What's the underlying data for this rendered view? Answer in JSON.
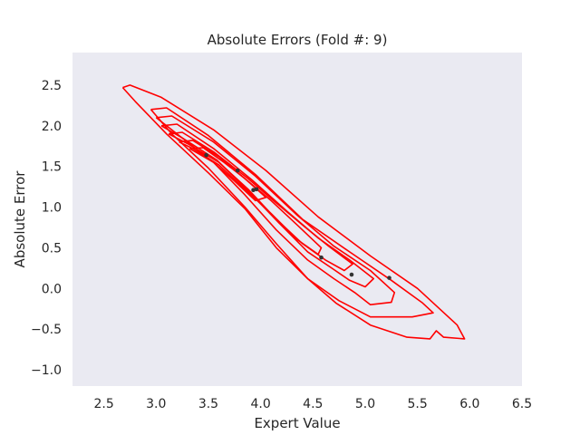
{
  "chart_data": {
    "type": "scatter",
    "title": "Absolute Errors (Fold #: 9)",
    "xlabel": "Expert Value",
    "ylabel": "Absolute Error",
    "xlim": [
      2.2,
      6.5
    ],
    "ylim": [
      -1.2,
      2.9
    ],
    "x_ticks": [
      "2.5",
      "3.0",
      "3.5",
      "4.0",
      "4.5",
      "5.0",
      "5.5",
      "6.0",
      "6.5"
    ],
    "y_ticks": [
      "−1.0",
      "−0.5",
      "0.0",
      "0.5",
      "1.0",
      "1.5",
      "2.0",
      "2.5"
    ],
    "x_tick_values": [
      2.5,
      3.0,
      3.5,
      4.0,
      4.5,
      5.0,
      5.5,
      6.0,
      6.5
    ],
    "y_tick_values": [
      -1.0,
      -0.5,
      0.0,
      0.5,
      1.0,
      1.5,
      2.0,
      2.5
    ],
    "grid": false,
    "background_color": "#eaeaf2",
    "point_color": "#333333",
    "contour_color": "#ff0000",
    "points": [
      {
        "x": 3.48,
        "y": 1.64
      },
      {
        "x": 3.78,
        "y": 1.45
      },
      {
        "x": 3.93,
        "y": 1.21
      },
      {
        "x": 3.96,
        "y": 1.22
      },
      {
        "x": 4.58,
        "y": 0.38
      },
      {
        "x": 4.87,
        "y": 0.17
      },
      {
        "x": 5.23,
        "y": 0.13
      }
    ],
    "contours": [
      [
        [
          2.68,
          2.47
        ],
        [
          2.75,
          2.5
        ],
        [
          3.05,
          2.35
        ],
        [
          3.55,
          1.95
        ],
        [
          4.05,
          1.45
        ],
        [
          4.55,
          0.88
        ],
        [
          5.05,
          0.4
        ],
        [
          5.5,
          0.0
        ],
        [
          5.88,
          -0.45
        ],
        [
          5.95,
          -0.62
        ],
        [
          5.75,
          -0.6
        ],
        [
          5.68,
          -0.52
        ],
        [
          5.62,
          -0.62
        ],
        [
          5.4,
          -0.6
        ],
        [
          5.05,
          -0.45
        ],
        [
          4.72,
          -0.18
        ],
        [
          4.45,
          0.12
        ],
        [
          4.15,
          0.5
        ],
        [
          3.85,
          0.98
        ],
        [
          3.5,
          1.42
        ],
        [
          3.1,
          1.9
        ],
        [
          2.8,
          2.3
        ],
        [
          2.68,
          2.47
        ]
      ],
      [
        [
          2.95,
          2.2
        ],
        [
          3.1,
          2.22
        ],
        [
          3.5,
          1.88
        ],
        [
          3.95,
          1.4
        ],
        [
          4.4,
          0.85
        ],
        [
          4.85,
          0.45
        ],
        [
          5.25,
          0.1
        ],
        [
          5.55,
          -0.18
        ],
        [
          5.65,
          -0.3
        ],
        [
          5.45,
          -0.35
        ],
        [
          5.05,
          -0.35
        ],
        [
          4.75,
          -0.15
        ],
        [
          4.45,
          0.12
        ],
        [
          4.15,
          0.55
        ],
        [
          3.85,
          1.0
        ],
        [
          3.5,
          1.48
        ],
        [
          3.15,
          1.9
        ],
        [
          2.95,
          2.2
        ]
      ],
      [
        [
          3.0,
          2.1
        ],
        [
          3.15,
          2.12
        ],
        [
          3.55,
          1.8
        ],
        [
          3.95,
          1.38
        ],
        [
          4.35,
          0.9
        ],
        [
          4.7,
          0.52
        ],
        [
          5.05,
          0.22
        ],
        [
          5.28,
          -0.05
        ],
        [
          5.25,
          -0.17
        ],
        [
          5.05,
          -0.2
        ],
        [
          4.9,
          -0.05
        ],
        [
          4.7,
          0.12
        ],
        [
          4.45,
          0.35
        ],
        [
          4.15,
          0.72
        ],
        [
          3.85,
          1.15
        ],
        [
          3.55,
          1.55
        ],
        [
          3.2,
          1.9
        ],
        [
          3.0,
          2.1
        ]
      ],
      [
        [
          3.05,
          2.0
        ],
        [
          3.2,
          2.02
        ],
        [
          3.55,
          1.72
        ],
        [
          3.92,
          1.33
        ],
        [
          4.25,
          0.95
        ],
        [
          4.55,
          0.62
        ],
        [
          4.85,
          0.35
        ],
        [
          5.08,
          0.12
        ],
        [
          5.0,
          0.02
        ],
        [
          4.85,
          0.1
        ],
        [
          4.68,
          0.25
        ],
        [
          4.45,
          0.45
        ],
        [
          4.18,
          0.8
        ],
        [
          3.88,
          1.2
        ],
        [
          3.58,
          1.58
        ],
        [
          3.25,
          1.85
        ],
        [
          3.05,
          2.0
        ]
      ],
      [
        [
          3.12,
          1.9
        ],
        [
          3.25,
          1.92
        ],
        [
          3.55,
          1.68
        ],
        [
          3.88,
          1.35
        ],
        [
          4.15,
          1.05
        ],
        [
          4.4,
          0.78
        ],
        [
          4.65,
          0.52
        ],
        [
          4.88,
          0.3
        ],
        [
          4.8,
          0.22
        ],
        [
          4.62,
          0.35
        ],
        [
          4.4,
          0.55
        ],
        [
          4.15,
          0.85
        ],
        [
          3.88,
          1.22
        ],
        [
          3.6,
          1.55
        ],
        [
          3.3,
          1.78
        ],
        [
          3.12,
          1.9
        ]
      ],
      [
        [
          3.22,
          1.8
        ],
        [
          3.35,
          1.82
        ],
        [
          3.6,
          1.62
        ],
        [
          3.85,
          1.35
        ],
        [
          4.1,
          1.08
        ],
        [
          4.35,
          0.78
        ],
        [
          4.58,
          0.5
        ],
        [
          4.55,
          0.42
        ],
        [
          4.35,
          0.6
        ],
        [
          4.1,
          0.92
        ],
        [
          3.85,
          1.22
        ],
        [
          3.6,
          1.52
        ],
        [
          3.35,
          1.72
        ],
        [
          3.22,
          1.8
        ]
      ],
      [
        [
          3.32,
          1.72
        ],
        [
          3.45,
          1.73
        ],
        [
          3.65,
          1.55
        ],
        [
          3.85,
          1.35
        ],
        [
          4.05,
          1.12
        ],
        [
          3.95,
          1.08
        ],
        [
          3.75,
          1.32
        ],
        [
          3.55,
          1.55
        ],
        [
          3.32,
          1.72
        ]
      ]
    ]
  }
}
